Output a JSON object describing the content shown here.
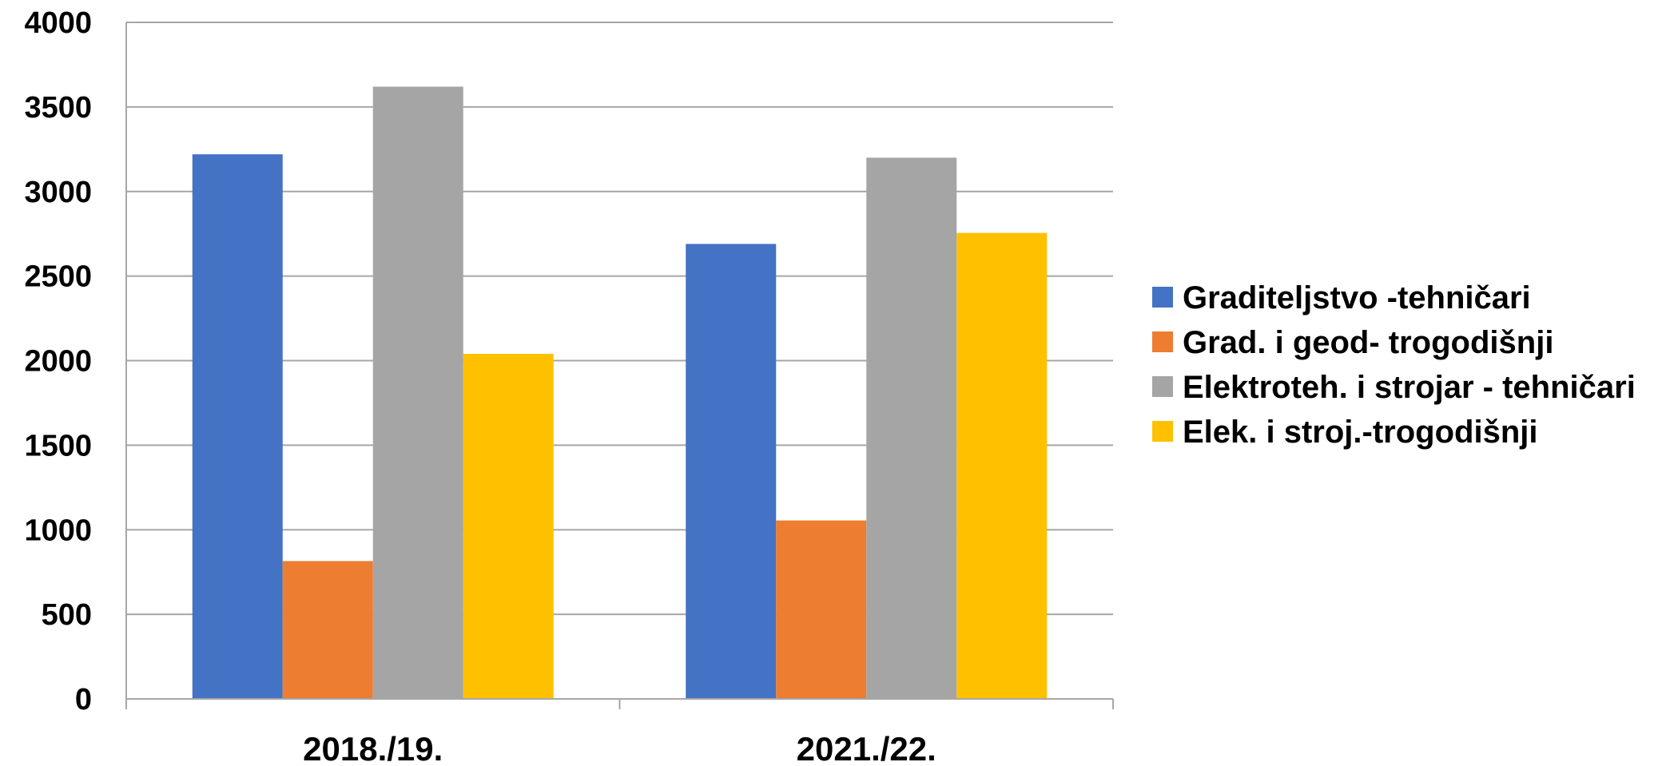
{
  "chart_data": {
    "type": "bar",
    "categories": [
      "2018./19.",
      "2021./22."
    ],
    "series": [
      {
        "name": "Graditeljstvo -tehničari",
        "values": [
          3220,
          2690
        ],
        "color": "#4472C4"
      },
      {
        "name": "Grad. i geod- trogodišnji",
        "values": [
          815,
          1055
        ],
        "color": "#ED7D31"
      },
      {
        "name": "Elektroteh. i strojar - tehničari",
        "values": [
          3620,
          3200
        ],
        "color": "#A5A5A5"
      },
      {
        "name": "Elek. i stroj.-trogodišnji",
        "values": [
          2040,
          2755
        ],
        "color": "#FFC000"
      }
    ],
    "yticks": [
      "0",
      "500",
      "1000",
      "1500",
      "2000",
      "2500",
      "3000",
      "3500",
      "4000"
    ],
    "ylim": [
      0,
      4000
    ],
    "grid": true,
    "legend": "right",
    "title": "",
    "xlabel": "",
    "ylabel": ""
  }
}
